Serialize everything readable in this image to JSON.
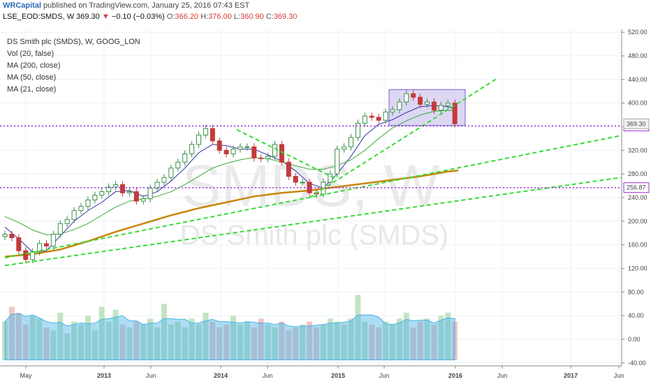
{
  "header": {
    "publisher": "WRCapital",
    "published_text": " published on TradingView.com, January 25, 2016 07:43 EST",
    "symbol": "LSE_EOD:SMDS, W",
    "last": "369.30",
    "change_arrow": "▼",
    "change": "−0.10 (−0.03%)",
    "o_label": "O:",
    "o_value": "366.20",
    "h_label": "H:",
    "h_value": "376.00",
    "l_label": "L:",
    "l_value": "360.90",
    "c_label": "C:",
    "c_value": "369.30"
  },
  "legend": {
    "title": "DS Smith plc (SMDS), W, GOOG_LON",
    "vol": "Vol (20, false)",
    "ma200": "MA (200, close)",
    "ma50": "MA (50, close)",
    "ma21": "MA (21, close)"
  },
  "watermark": {
    "symbol": "SMDS, W",
    "name": "DS Smith plc (SMDS)"
  },
  "colors": {
    "up": "#3d8f4a",
    "down": "#c23b3b",
    "ma21": "#3232a8",
    "ma50": "#3aa83a",
    "ma200": "#c8860a",
    "trend": "#33dd33",
    "level": "#9b2bd6",
    "box": "#cfc6ee",
    "vol_up": "#b9dfb9",
    "vol_down": "#f0bcbc",
    "vol_ma": "#4ab3e6"
  },
  "chart_data": {
    "type": "candlestick",
    "interval": "W",
    "x_ticks": [
      "May",
      "2013",
      "Jun",
      "2014",
      "Jun",
      "2015",
      "Jun",
      "2016",
      "Jun",
      "2017",
      "Jun"
    ],
    "y_ticks": [
      "520.00",
      "480.00",
      "440.00",
      "400.00",
      "360.00",
      "320.00",
      "280.00",
      "240.00",
      "200.00",
      "160.00",
      "120.00",
      "80.00",
      "40.00",
      "0.00",
      "-40.00"
    ],
    "ylim": [
      -45,
      525
    ],
    "price_label": "369.30",
    "levels": [
      {
        "value": 361.35,
        "label": "361.35"
      },
      {
        "value": 256.87,
        "label": "256.87"
      }
    ],
    "resistance_box": {
      "from": 362,
      "to": 423,
      "x_start": "Jun 2015",
      "x_end": "Jan 2016"
    },
    "series": [
      {
        "name": "price",
        "points": [
          [
            0,
            178
          ],
          [
            10,
            172
          ],
          [
            20,
            150
          ],
          [
            30,
            135
          ],
          [
            40,
            148
          ],
          [
            50,
            162
          ],
          [
            60,
            158
          ],
          [
            70,
            178
          ],
          [
            80,
            196
          ],
          [
            90,
            203
          ],
          [
            100,
            218
          ],
          [
            110,
            225
          ],
          [
            120,
            236
          ],
          [
            130,
            244
          ],
          [
            140,
            250
          ],
          [
            150,
            258
          ],
          [
            160,
            262
          ],
          [
            170,
            248
          ],
          [
            180,
            250
          ],
          [
            190,
            234
          ],
          [
            200,
            238
          ],
          [
            210,
            256
          ],
          [
            220,
            266
          ],
          [
            230,
            274
          ],
          [
            240,
            290
          ],
          [
            250,
            300
          ],
          [
            260,
            314
          ],
          [
            270,
            330
          ],
          [
            280,
            346
          ],
          [
            290,
            357
          ],
          [
            300,
            336
          ],
          [
            310,
            320
          ],
          [
            320,
            314
          ],
          [
            330,
            322
          ],
          [
            340,
            326
          ],
          [
            350,
            326
          ],
          [
            360,
            307
          ],
          [
            370,
            306
          ],
          [
            380,
            310
          ],
          [
            390,
            330
          ],
          [
            400,
            300
          ],
          [
            410,
            276
          ],
          [
            420,
            266
          ],
          [
            430,
            266
          ],
          [
            440,
            248
          ],
          [
            450,
            246
          ],
          [
            460,
            266
          ],
          [
            470,
            280
          ],
          [
            480,
            322
          ],
          [
            490,
            326
          ],
          [
            500,
            342
          ],
          [
            510,
            366
          ],
          [
            520,
            378
          ],
          [
            530,
            376
          ],
          [
            540,
            371
          ],
          [
            550,
            385
          ],
          [
            560,
            389
          ],
          [
            570,
            402
          ],
          [
            580,
            416
          ],
          [
            590,
            410
          ],
          [
            600,
            398
          ],
          [
            610,
            402
          ],
          [
            620,
            388
          ],
          [
            630,
            396
          ],
          [
            640,
            400
          ],
          [
            650,
            365
          ]
        ]
      },
      {
        "name": "volume",
        "points": [
          [
            0,
            30
          ],
          [
            10,
            55
          ],
          [
            20,
            45
          ],
          [
            30,
            25
          ],
          [
            40,
            40
          ],
          [
            50,
            35
          ],
          [
            60,
            20
          ],
          [
            70,
            15
          ],
          [
            80,
            45
          ],
          [
            90,
            10
          ],
          [
            100,
            30
          ],
          [
            110,
            25
          ],
          [
            120,
            40
          ],
          [
            130,
            15
          ],
          [
            140,
            55
          ],
          [
            150,
            30
          ],
          [
            160,
            50
          ],
          [
            170,
            25
          ],
          [
            180,
            20
          ],
          [
            190,
            30
          ],
          [
            200,
            25
          ],
          [
            210,
            35
          ],
          [
            220,
            20
          ],
          [
            230,
            60
          ],
          [
            240,
            25
          ],
          [
            250,
            30
          ],
          [
            260,
            20
          ],
          [
            270,
            35
          ],
          [
            280,
            25
          ],
          [
            290,
            45
          ],
          [
            300,
            30
          ],
          [
            310,
            20
          ],
          [
            320,
            25
          ],
          [
            330,
            40
          ],
          [
            340,
            25
          ],
          [
            350,
            30
          ],
          [
            360,
            20
          ],
          [
            370,
            35
          ],
          [
            380,
            25
          ],
          [
            390,
            20
          ],
          [
            400,
            30
          ],
          [
            410,
            15
          ],
          [
            420,
            20
          ],
          [
            430,
            25
          ],
          [
            440,
            30
          ],
          [
            450,
            20
          ],
          [
            460,
            25
          ],
          [
            470,
            35
          ],
          [
            480,
            30
          ],
          [
            490,
            25
          ],
          [
            500,
            35
          ],
          [
            510,
            75
          ],
          [
            520,
            30
          ],
          [
            530,
            25
          ],
          [
            540,
            20
          ],
          [
            550,
            30
          ],
          [
            560,
            25
          ],
          [
            570,
            35
          ],
          [
            580,
            45
          ],
          [
            590,
            20
          ],
          [
            600,
            30
          ],
          [
            610,
            35
          ],
          [
            620,
            25
          ],
          [
            630,
            40
          ],
          [
            640,
            45
          ],
          [
            650,
            30
          ]
        ]
      }
    ],
    "moving_averages": [
      {
        "name": "MA (21, close)",
        "points": [
          [
            0,
            190
          ],
          [
            20,
            170
          ],
          [
            40,
            148
          ],
          [
            60,
            150
          ],
          [
            80,
            175
          ],
          [
            100,
            200
          ],
          [
            120,
            218
          ],
          [
            140,
            232
          ],
          [
            160,
            250
          ],
          [
            180,
            252
          ],
          [
            200,
            242
          ],
          [
            220,
            250
          ],
          [
            240,
            268
          ],
          [
            260,
            290
          ],
          [
            280,
            316
          ],
          [
            300,
            330
          ],
          [
            320,
            328
          ],
          [
            340,
            322
          ],
          [
            360,
            322
          ],
          [
            380,
            312
          ],
          [
            400,
            302
          ],
          [
            420,
            285
          ],
          [
            440,
            264
          ],
          [
            460,
            256
          ],
          [
            480,
            280
          ],
          [
            500,
            310
          ],
          [
            520,
            345
          ],
          [
            540,
            364
          ],
          [
            560,
            372
          ],
          [
            580,
            384
          ],
          [
            600,
            394
          ],
          [
            620,
            396
          ],
          [
            640,
            394
          ],
          [
            650,
            390
          ]
        ]
      },
      {
        "name": "MA (50, close)",
        "points": [
          [
            0,
            208
          ],
          [
            20,
            198
          ],
          [
            40,
            185
          ],
          [
            60,
            177
          ],
          [
            80,
            178
          ],
          [
            100,
            186
          ],
          [
            120,
            196
          ],
          [
            140,
            210
          ],
          [
            160,
            224
          ],
          [
            180,
            234
          ],
          [
            200,
            238
          ],
          [
            220,
            242
          ],
          [
            240,
            250
          ],
          [
            260,
            262
          ],
          [
            280,
            276
          ],
          [
            300,
            290
          ],
          [
            320,
            298
          ],
          [
            340,
            304
          ],
          [
            360,
            308
          ],
          [
            380,
            306
          ],
          [
            400,
            300
          ],
          [
            420,
            294
          ],
          [
            440,
            288
          ],
          [
            460,
            288
          ],
          [
            480,
            294
          ],
          [
            500,
            304
          ],
          [
            520,
            320
          ],
          [
            540,
            340
          ],
          [
            560,
            358
          ],
          [
            580,
            370
          ],
          [
            600,
            380
          ],
          [
            620,
            386
          ],
          [
            640,
            388
          ],
          [
            650,
            387
          ]
        ]
      },
      {
        "name": "MA (200, close)",
        "points": [
          [
            0,
            140
          ],
          [
            40,
            144
          ],
          [
            80,
            152
          ],
          [
            120,
            166
          ],
          [
            160,
            182
          ],
          [
            200,
            196
          ],
          [
            240,
            210
          ],
          [
            280,
            222
          ],
          [
            320,
            232
          ],
          [
            360,
            242
          ],
          [
            400,
            248
          ],
          [
            440,
            252
          ],
          [
            480,
            258
          ],
          [
            520,
            264
          ],
          [
            560,
            270
          ],
          [
            600,
            276
          ],
          [
            640,
            284
          ],
          [
            655,
            286
          ]
        ]
      }
    ],
    "trendlines": [
      {
        "from": [
          0,
          125
        ],
        "to": [
          890,
          274
        ]
      },
      {
        "from": [
          0,
          138
        ],
        "to": [
          890,
          345
        ]
      },
      {
        "from": [
          440,
          240
        ],
        "to": [
          710,
          441
        ]
      },
      {
        "from": [
          335,
          355
        ],
        "to": [
          478,
          272
        ]
      }
    ]
  }
}
